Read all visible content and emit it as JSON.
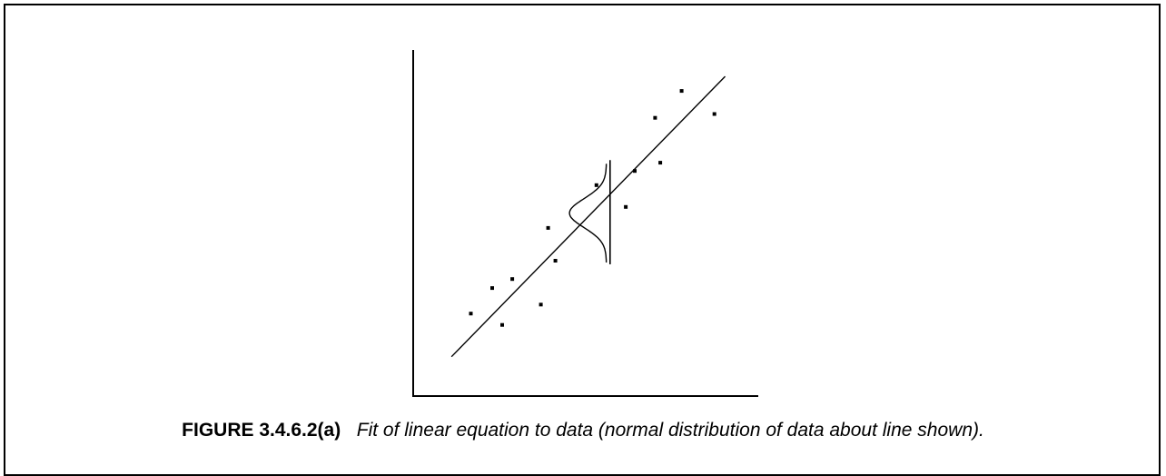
{
  "caption": {
    "label": "FIGURE 3.4.6.2(a)",
    "text": "Fit of linear equation to data (normal distribution of data about line shown)."
  },
  "chart_data": {
    "type": "scatter",
    "title": "",
    "xlabel": "",
    "ylabel": "",
    "grid": false,
    "legend": "none",
    "xlim": [
      0,
      10
    ],
    "ylim": [
      0,
      10
    ],
    "x_ticks_labeled": false,
    "y_ticks_labeled": false,
    "colors": {
      "marks": "#000000"
    },
    "points": [
      {
        "x": 1.67,
        "y": 2.39
      },
      {
        "x": 2.29,
        "y": 3.13
      },
      {
        "x": 2.58,
        "y": 2.06
      },
      {
        "x": 2.87,
        "y": 3.39
      },
      {
        "x": 3.7,
        "y": 2.65
      },
      {
        "x": 3.91,
        "y": 4.87
      },
      {
        "x": 4.12,
        "y": 3.92
      },
      {
        "x": 5.31,
        "y": 6.11
      },
      {
        "x": 6.16,
        "y": 5.48
      },
      {
        "x": 6.42,
        "y": 6.52
      },
      {
        "x": 7.01,
        "y": 8.06
      },
      {
        "x": 7.16,
        "y": 6.76
      },
      {
        "x": 7.78,
        "y": 8.84
      },
      {
        "x": 8.73,
        "y": 8.17
      }
    ],
    "fit_line": {
      "x": [
        1.11,
        9.04
      ],
      "y": [
        1.14,
        9.26
      ]
    },
    "normal_curve": {
      "x_center": 5.6,
      "y_center": 5.3,
      "sigma": 0.42,
      "peak_width": 1.07,
      "y_half_span": 1.43
    }
  }
}
